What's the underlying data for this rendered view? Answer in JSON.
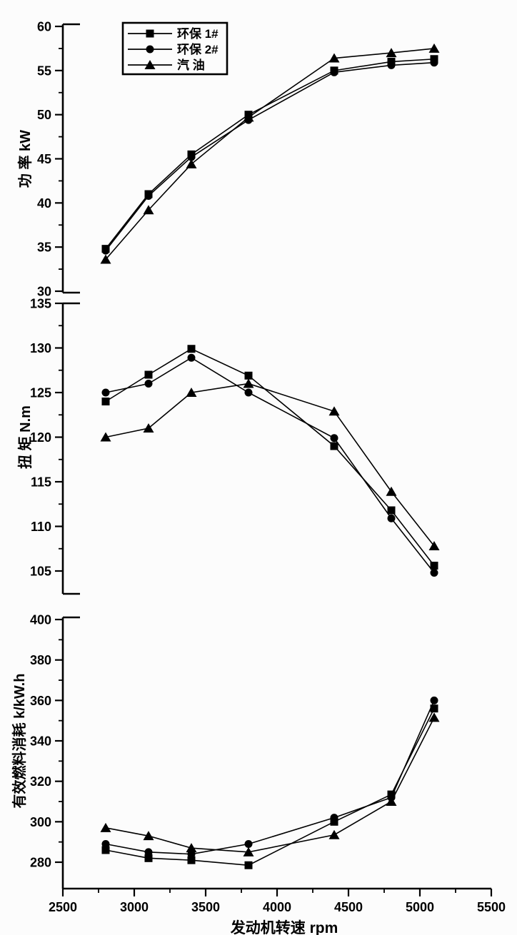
{
  "figure": {
    "background": "#fcfcfc",
    "ink": "#000000",
    "xlabel": "发动机转速  rpm",
    "legend": {
      "entries": [
        {
          "marker": "square",
          "label": "环保 1#"
        },
        {
          "marker": "circle",
          "label": "环保 2#"
        },
        {
          "marker": "triangle",
          "label": "汽  油"
        }
      ]
    }
  },
  "chart_data": [
    {
      "type": "line",
      "title": "",
      "ylabel": "功 率 kW",
      "xlabel": "发动机转速 rpm",
      "x": [
        2800,
        3100,
        3400,
        3800,
        4400,
        4800,
        5100
      ],
      "xlim": [
        2500,
        5500
      ],
      "xticks": [
        2500,
        3000,
        3500,
        4000,
        4500,
        5000,
        5500
      ],
      "xminor_step": 250,
      "ylim": [
        30,
        60
      ],
      "yticks": [
        30,
        35,
        40,
        45,
        50,
        55,
        60
      ],
      "yminor_step": 2.5,
      "grid": false,
      "legend_position": "top-left-inside",
      "series": [
        {
          "name": "环保 1#",
          "marker": "square",
          "values": [
            34.8,
            41.0,
            45.5,
            50.0,
            55.0,
            56.0,
            56.3
          ]
        },
        {
          "name": "环保 2#",
          "marker": "circle",
          "values": [
            34.6,
            40.8,
            45.2,
            49.4,
            54.8,
            55.6,
            55.9
          ]
        },
        {
          "name": "汽油",
          "marker": "triangle",
          "values": [
            33.6,
            39.2,
            44.4,
            49.7,
            56.4,
            57.0,
            57.5
          ]
        }
      ]
    },
    {
      "type": "line",
      "title": "",
      "ylabel": "扭 矩 N.m",
      "xlabel": "发动机转速 rpm",
      "x": [
        2800,
        3100,
        3400,
        3800,
        4400,
        4800,
        5100
      ],
      "xlim": [
        2500,
        5500
      ],
      "ylim": [
        102.5,
        135
      ],
      "yticks": [
        105,
        110,
        115,
        120,
        125,
        130,
        135
      ],
      "yminor_step": 2.5,
      "grid": false,
      "series": [
        {
          "name": "环保 1#",
          "marker": "square",
          "values": [
            124,
            127,
            129.9,
            126.9,
            119.0,
            111.8,
            105.6
          ]
        },
        {
          "name": "环保 2#",
          "marker": "circle",
          "values": [
            125,
            126,
            128.9,
            125.0,
            119.9,
            110.9,
            104.8
          ]
        },
        {
          "name": "汽油",
          "marker": "triangle",
          "values": [
            120,
            121,
            125.0,
            126.0,
            122.9,
            113.9,
            107.8
          ]
        }
      ]
    },
    {
      "type": "line",
      "title": "",
      "ylabel": "有效燃料消耗 k/kW.h",
      "xlabel": "发动机转速 rpm",
      "x": [
        2800,
        3100,
        3400,
        3800,
        4400,
        4800,
        5100
      ],
      "xlim": [
        2500,
        5500
      ],
      "ylim": [
        267,
        400
      ],
      "yticks": [
        280,
        300,
        320,
        340,
        360,
        380,
        400
      ],
      "yminor_step": 10,
      "grid": false,
      "series": [
        {
          "name": "环保 1#",
          "marker": "square",
          "values": [
            286,
            282,
            281,
            278.5,
            300.0,
            313.5,
            356.0
          ]
        },
        {
          "name": "环保 2#",
          "marker": "circle",
          "values": [
            289,
            285,
            284,
            289.0,
            302.0,
            312.0,
            360.0
          ]
        },
        {
          "name": "汽油",
          "marker": "triangle",
          "values": [
            297,
            293,
            287,
            285.0,
            293.5,
            310.0,
            351.5
          ]
        }
      ]
    }
  ]
}
